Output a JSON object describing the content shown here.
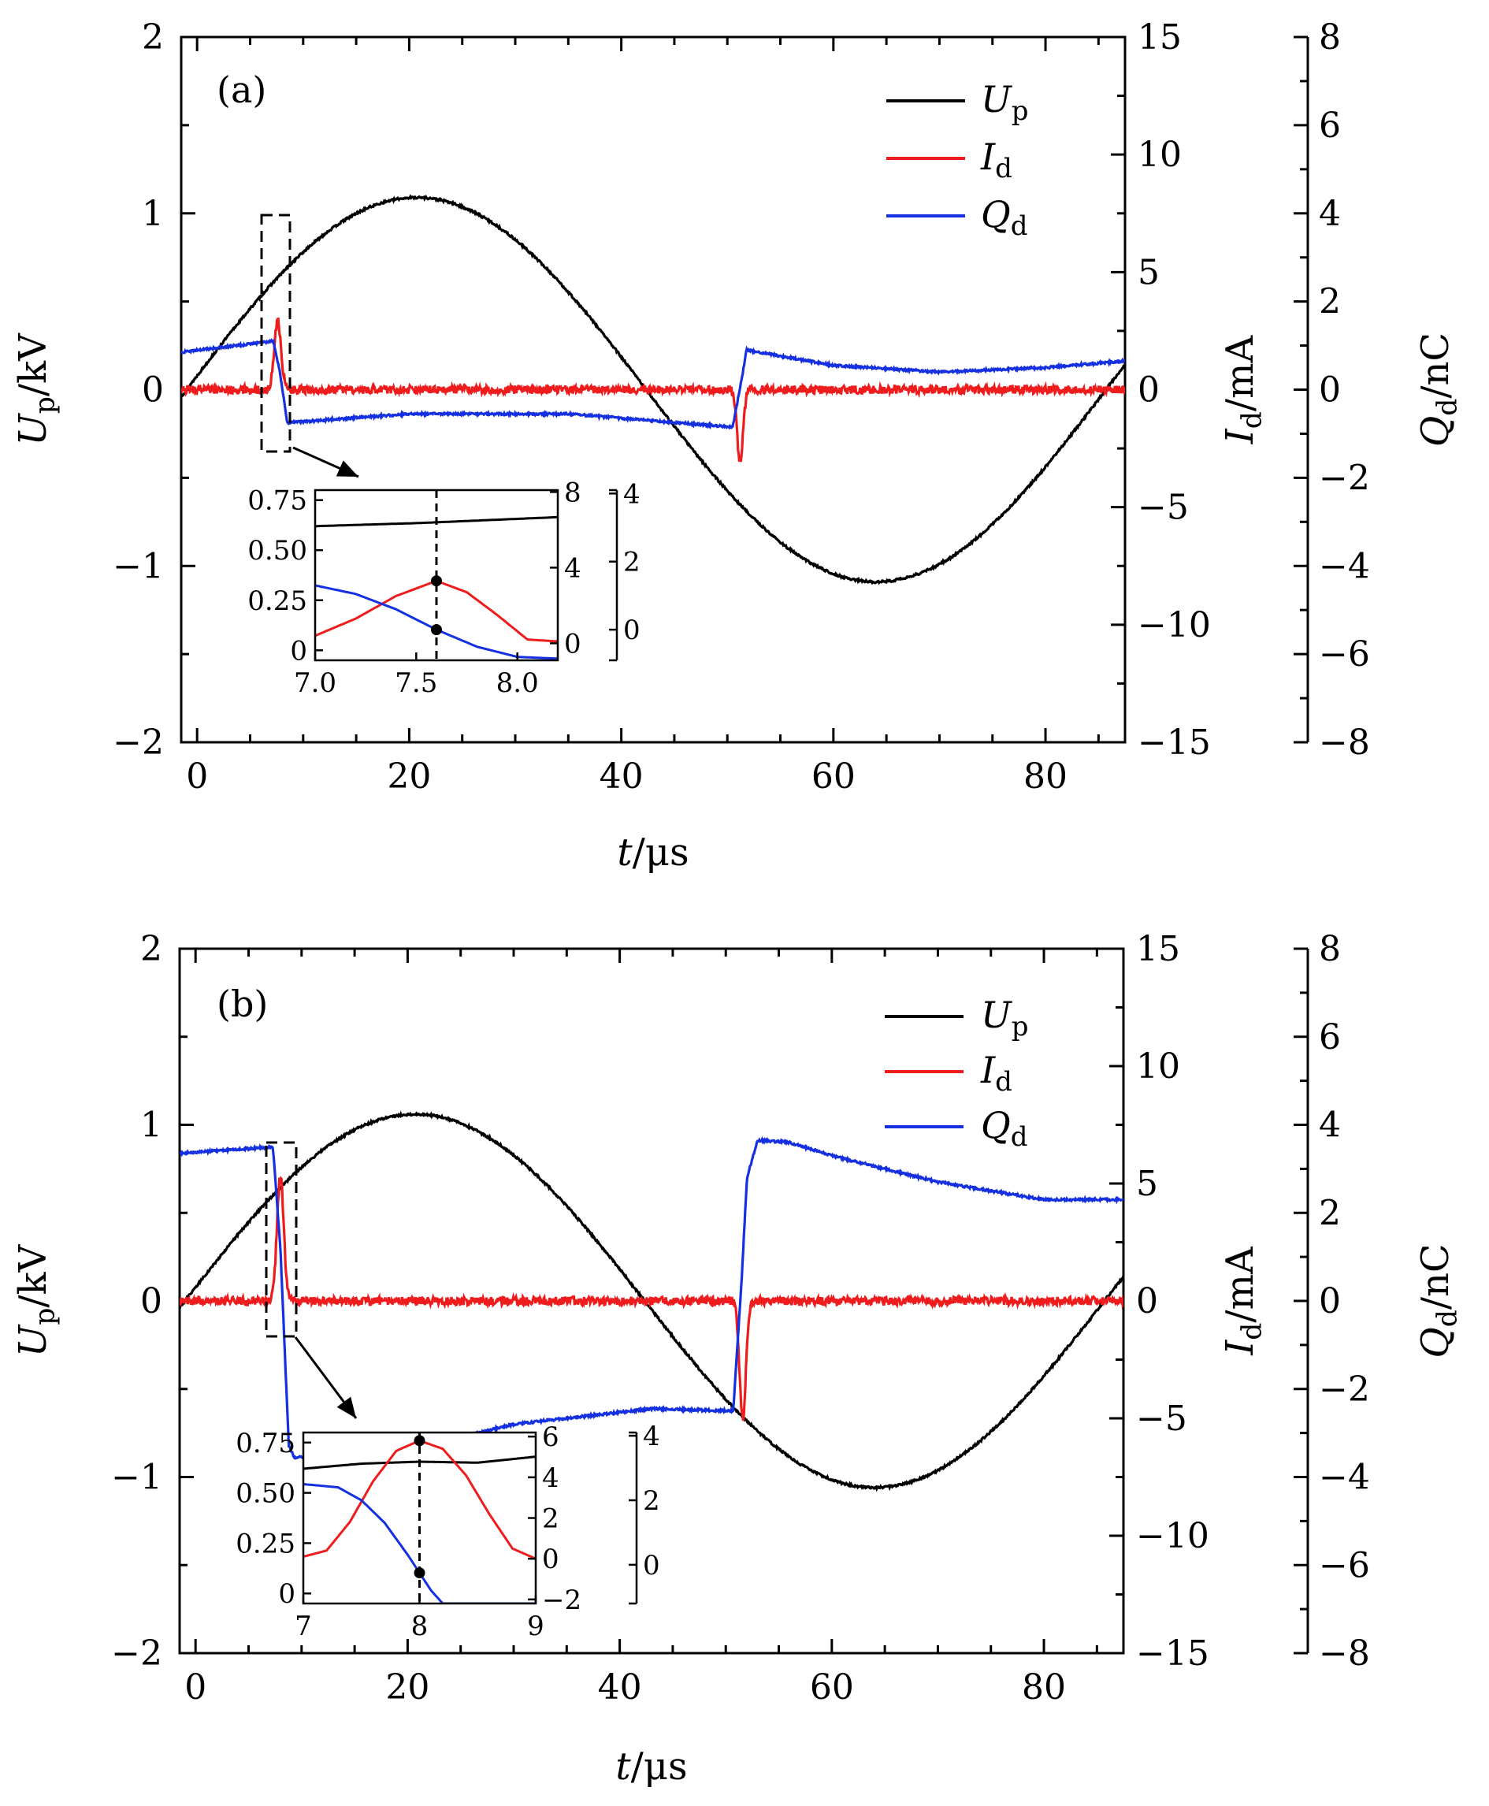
{
  "chart_data": [
    {
      "panel_label": "(a)",
      "type": "line",
      "x_axis": {
        "label": "t",
        "unit": "/μs",
        "ticks": [
          "0",
          "20",
          "40",
          "60",
          "80"
        ],
        "tick_values": [
          0,
          20,
          40,
          60,
          80
        ],
        "range": [
          -1.5,
          87.5
        ]
      },
      "left_axis": {
        "symbol": "U",
        "sub": "p",
        "unit": "/kV",
        "ticks": [
          "−2",
          "−1",
          "0",
          "1",
          "2"
        ],
        "tick_values": [
          -2,
          -1,
          0,
          1,
          2
        ],
        "range": [
          -2,
          2
        ]
      },
      "right_axis_1": {
        "symbol": "I",
        "sub": "d",
        "unit": "/mA",
        "ticks": [
          "−15",
          "−10",
          "−5",
          "0",
          "5",
          "10",
          "15"
        ],
        "tick_values": [
          -15,
          -10,
          -5,
          0,
          5,
          10,
          15
        ],
        "range": [
          -15,
          15
        ]
      },
      "right_axis_2": {
        "symbol": "Q",
        "sub": "d",
        "unit": "/nC",
        "ticks": [
          "−8",
          "−6",
          "−4",
          "−2",
          "0",
          "2",
          "4",
          "6",
          "8"
        ],
        "tick_values": [
          -8,
          -6,
          -4,
          -2,
          0,
          2,
          4,
          6,
          8
        ],
        "range": [
          -8,
          8
        ]
      },
      "legend": [
        {
          "symbol": "U",
          "sub": "p",
          "color": "#000000"
        },
        {
          "symbol": "I",
          "sub": "d",
          "color": "#ee1c1c"
        },
        {
          "symbol": "Q",
          "sub": "d",
          "color": "#1530e0"
        }
      ],
      "series": {
        "Up_kV": {
          "amplitude": 1.09,
          "zero_cross_t": -1.0,
          "period": 86.7,
          "note": "sinusoid, peak ~1.09 kV at ~20 μs, min ~-1.09 kV at ~63 μs"
        },
        "Id_mA": {
          "pulses": [
            {
              "t": 7.6,
              "amp": 2.9,
              "width": 0.45
            },
            {
              "t": 51.2,
              "amp": -3.0,
              "width": 0.4
            }
          ],
          "baseline": 0
        },
        "Qd_nC": [
          [
            -1.5,
            0.85
          ],
          [
            7.2,
            1.1
          ],
          [
            7.8,
            0.4
          ],
          [
            8.5,
            -0.75
          ],
          [
            20,
            -0.55
          ],
          [
            35,
            -0.55
          ],
          [
            50.5,
            -0.85
          ],
          [
            51.4,
            0.3
          ],
          [
            51.8,
            0.9
          ],
          [
            60,
            0.55
          ],
          [
            70,
            0.4
          ],
          [
            80,
            0.5
          ],
          [
            87.5,
            0.65
          ]
        ]
      },
      "highlight_box": {
        "t": [
          6.1,
          8.9
        ],
        "U_kV": [
          -0.35,
          1.0
        ]
      },
      "inset": {
        "x_ticks": [
          "7.0",
          "7.5",
          "8.0"
        ],
        "x_tick_values": [
          7.0,
          7.5,
          8.0
        ],
        "x_range": [
          7.0,
          8.2
        ],
        "y_ticks": [
          "0",
          "0.25",
          "0.50",
          "0.75"
        ],
        "y_tick_values": [
          0,
          0.25,
          0.5,
          0.75
        ],
        "y_range": [
          -0.05,
          0.8
        ],
        "r1_ticks": [
          "0",
          "4",
          "8"
        ],
        "r1_tick_values": [
          0,
          4,
          8
        ],
        "r1_range": [
          -0.9,
          8.1
        ],
        "r2_ticks": [
          "0",
          "2",
          "4"
        ],
        "r2_tick_values": [
          0,
          2,
          4
        ],
        "r2_range": [
          -0.9,
          4.1
        ],
        "marker_t": 7.6,
        "Up_kV": [
          [
            7.0,
            0.62
          ],
          [
            7.5,
            0.635
          ],
          [
            8.2,
            0.665
          ]
        ],
        "Id_mA": [
          [
            7.0,
            0.4
          ],
          [
            7.2,
            1.3
          ],
          [
            7.4,
            2.5
          ],
          [
            7.6,
            3.3
          ],
          [
            7.75,
            2.7
          ],
          [
            7.9,
            1.5
          ],
          [
            8.05,
            0.2
          ],
          [
            8.2,
            0.1
          ]
        ],
        "Qd_nC": [
          [
            7.0,
            1.3
          ],
          [
            7.2,
            1.05
          ],
          [
            7.4,
            0.6
          ],
          [
            7.6,
            0.0
          ],
          [
            7.8,
            -0.5
          ],
          [
            8.0,
            -0.8
          ],
          [
            8.2,
            -0.85
          ]
        ]
      }
    },
    {
      "panel_label": "(b)",
      "type": "line",
      "x_axis": {
        "label": "t",
        "unit": "/μs",
        "ticks": [
          "0",
          "20",
          "40",
          "60",
          "80"
        ],
        "tick_values": [
          0,
          20,
          40,
          60,
          80
        ],
        "range": [
          -1.5,
          87.5
        ]
      },
      "left_axis": {
        "symbol": "U",
        "sub": "p",
        "unit": "/kV",
        "ticks": [
          "−2",
          "−1",
          "0",
          "1",
          "2"
        ],
        "tick_values": [
          -2,
          -1,
          0,
          1,
          2
        ],
        "range": [
          -2,
          2
        ]
      },
      "right_axis_1": {
        "symbol": "I",
        "sub": "d",
        "unit": "/mA",
        "ticks": [
          "−15",
          "−10",
          "−5",
          "0",
          "5",
          "10",
          "15"
        ],
        "tick_values": [
          -15,
          -10,
          -5,
          0,
          5,
          10,
          15
        ],
        "range": [
          -15,
          15
        ]
      },
      "right_axis_2": {
        "symbol": "Q",
        "sub": "d",
        "unit": "/nC",
        "ticks": [
          "−8",
          "−6",
          "−4",
          "−2",
          "0",
          "2",
          "4",
          "6",
          "8"
        ],
        "tick_values": [
          -8,
          -6,
          -4,
          -2,
          0,
          2,
          4,
          6,
          8
        ],
        "range": [
          -8,
          8
        ]
      },
      "legend": [
        {
          "symbol": "U",
          "sub": "p",
          "color": "#000000"
        },
        {
          "symbol": "I",
          "sub": "d",
          "color": "#ee1c1c"
        },
        {
          "symbol": "Q",
          "sub": "d",
          "color": "#1530e0"
        }
      ],
      "series": {
        "Up_kV": {
          "amplitude": 1.06,
          "zero_cross_t": -1.0,
          "period": 86.7,
          "note": "sinusoid, peak ~1.06 kV at ~20 μs, min ~-1.06 kV at ~63 μs"
        },
        "Id_mA": {
          "pulses": [
            {
              "t": 8.0,
              "amp": 5.3,
              "width": 0.45
            },
            {
              "t": 51.6,
              "amp": -5.0,
              "width": 0.42
            }
          ],
          "baseline": 0
        },
        "Qd_nC": [
          [
            -1.5,
            3.35
          ],
          [
            7.3,
            3.5
          ],
          [
            8.0,
            1.2
          ],
          [
            8.8,
            -3.3
          ],
          [
            9.3,
            -3.55
          ],
          [
            20,
            -3.4
          ],
          [
            30,
            -2.8
          ],
          [
            43,
            -2.45
          ],
          [
            50.7,
            -2.5
          ],
          [
            51.5,
            0.5
          ],
          [
            52,
            2.8
          ],
          [
            53,
            3.65
          ],
          [
            56,
            3.6
          ],
          [
            60,
            3.3
          ],
          [
            70,
            2.7
          ],
          [
            80,
            2.3
          ],
          [
            87.5,
            2.3
          ]
        ]
      },
      "highlight_box": {
        "t": [
          6.5,
          9.5
        ],
        "U_kV": [
          -0.2,
          0.9
        ]
      },
      "inset": {
        "x_ticks": [
          "7",
          "8",
          "9"
        ],
        "x_tick_values": [
          7,
          8,
          9
        ],
        "x_range": [
          7,
          9
        ],
        "y_ticks": [
          "0",
          "0.25",
          "0.50",
          "0.75"
        ],
        "y_tick_values": [
          0,
          0.25,
          0.5,
          0.75
        ],
        "y_range": [
          -0.05,
          0.8
        ],
        "r1_ticks": [
          "−2",
          "0",
          "2",
          "4",
          "6"
        ],
        "r1_tick_values": [
          -2,
          0,
          2,
          4,
          6
        ],
        "r1_range": [
          -2.2,
          6.2
        ],
        "r2_ticks": [
          "0",
          "2",
          "4"
        ],
        "r2_tick_values": [
          0,
          2,
          4
        ],
        "r2_range": [
          -1.2,
          4.1
        ],
        "marker_t": 8.0,
        "Up_kV": [
          [
            7.0,
            0.62
          ],
          [
            7.5,
            0.645
          ],
          [
            8.0,
            0.655
          ],
          [
            8.5,
            0.65
          ],
          [
            9.0,
            0.68
          ]
        ],
        "Id_mA": [
          [
            7.0,
            0.1
          ],
          [
            7.2,
            0.4
          ],
          [
            7.4,
            1.8
          ],
          [
            7.6,
            3.8
          ],
          [
            7.8,
            5.3
          ],
          [
            8.0,
            5.8
          ],
          [
            8.2,
            5.4
          ],
          [
            8.4,
            4.1
          ],
          [
            8.6,
            2.2
          ],
          [
            8.8,
            0.5
          ],
          [
            9.0,
            0.0
          ]
        ],
        "Qd_nC": [
          [
            7.0,
            2.5
          ],
          [
            7.3,
            2.4
          ],
          [
            7.5,
            2.0
          ],
          [
            7.7,
            1.3
          ],
          [
            7.9,
            0.3
          ],
          [
            8.0,
            -0.25
          ],
          [
            8.1,
            -0.8
          ],
          [
            8.2,
            -1.2
          ]
        ]
      }
    }
  ]
}
